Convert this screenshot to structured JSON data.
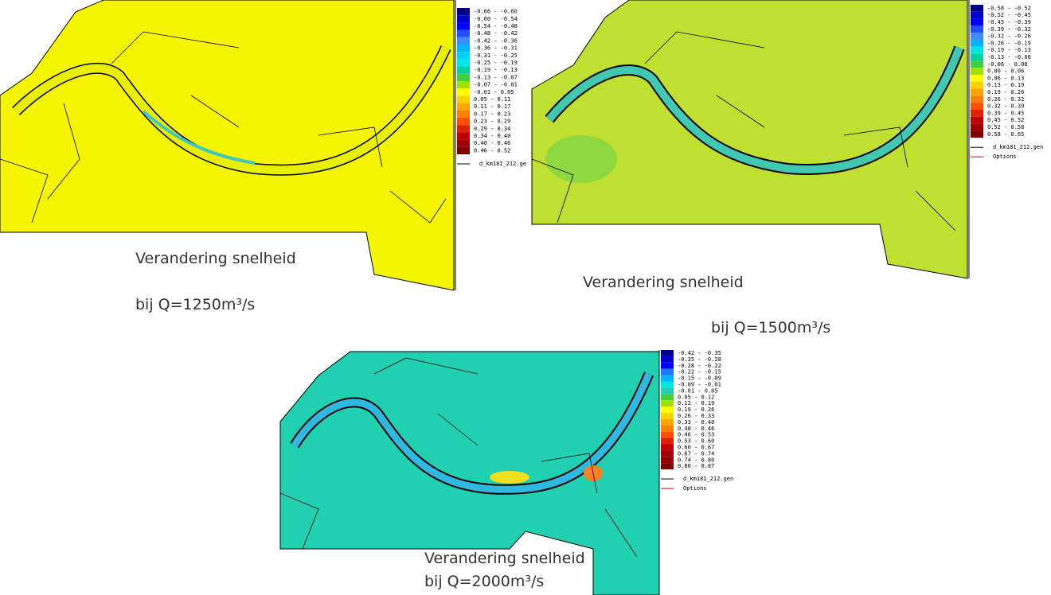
{
  "maps": [
    {
      "caption_title": "Verandering snelheid",
      "caption_q": "bij Q=1250m³/s",
      "legend": {
        "entries": [
          "-0.66 - -0.60",
          "-0.60 - -0.54",
          "-0.54 - -0.48",
          "-0.48 - -0.42",
          "-0.42 - -0.36",
          "-0.36 - -0.31",
          "-0.31 - -0.25",
          "-0.25 - -0.19",
          "-0.19 - -0.13",
          "-0.13 - -0.07",
          "-0.07 - -0.01",
          "-0.01 - 0.05",
          "0.05 - 0.11",
          "0.11 - 0.17",
          "0.17 - 0.23",
          "0.23 - 0.29",
          "0.29 - 0.34",
          "0.34 - 0.40",
          "0.40 - 0.46",
          "0.46 - 0.52"
        ],
        "colors": [
          "#00008b",
          "#0000cd",
          "#0000ff",
          "#1e50ff",
          "#3c8cff",
          "#00b4ff",
          "#00d2ff",
          "#00e6e6",
          "#00d2a0",
          "#40d040",
          "#a0e000",
          "#ffff00",
          "#ffd000",
          "#ffa500",
          "#ff7f00",
          "#ff5000",
          "#e02000",
          "#c00000",
          "#a00000",
          "#800000"
        ],
        "file": "d_km181_212.ge"
      }
    },
    {
      "caption_title": "Verandering snelheid",
      "caption_q": "bij Q=1500m³/s",
      "legend": {
        "entries": [
          "-0.58 - -0.52",
          "-0.52 - -0.45",
          "-0.45 - -0.39",
          "-0.39 - -0.32",
          "-0.32 - -0.26",
          "-0.26 - -0.19",
          "-0.19 - -0.13",
          "-0.13 - -0.06",
          "-0.06 - 0.00",
          "0.00 - 0.06",
          "0.06 - 0.13",
          "0.13 - 0.19",
          "0.19 - 0.26",
          "0.26 - 0.32",
          "0.32 - 0.39",
          "0.39 - 0.45",
          "0.45 - 0.52",
          "0.52 - 0.58",
          "0.58 - 0.65"
        ],
        "colors": [
          "#00008b",
          "#0000cd",
          "#0000ff",
          "#1e50ff",
          "#3c8cff",
          "#00b4ff",
          "#00e6e6",
          "#00d2a0",
          "#40d040",
          "#a0e000",
          "#ffff00",
          "#ffd000",
          "#ffa500",
          "#ff7f00",
          "#ff5000",
          "#e02000",
          "#c00000",
          "#a00000",
          "#800000"
        ],
        "file": "d_km181_212.gen",
        "options": "Options"
      }
    },
    {
      "caption_title": "Verandering snelheid",
      "caption_q": "bij Q=2000m³/s",
      "legend": {
        "entries": [
          "-0.42 - -0.35",
          "-0.35 - -0.28",
          "-0.28 - -0.22",
          "-0.22 - -0.15",
          "-0.15 - -0.09",
          "-0.09 - -0.01",
          "-0.01 - 0.05",
          "0.05 - 0.12",
          "0.12 - 0.19",
          "0.19 - 0.26",
          "0.26 - 0.33",
          "0.33 - 0.40",
          "0.40 - 0.46",
          "0.46 - 0.53",
          "0.53 - 0.60",
          "0.60 - 0.67",
          "0.67 - 0.74",
          "0.74 - 0.80",
          "0.80 - 0.87"
        ],
        "colors": [
          "#00008b",
          "#0000cd",
          "#0000ff",
          "#1e78ff",
          "#00b4ff",
          "#00e6e6",
          "#20d0b0",
          "#40d040",
          "#a0e000",
          "#ffff00",
          "#ffd000",
          "#ffa500",
          "#ff7f00",
          "#ff5000",
          "#e02000",
          "#c00000",
          "#a00000",
          "#900000",
          "#800000"
        ],
        "file": "d_km181_212.gen",
        "options": "Options"
      }
    }
  ]
}
